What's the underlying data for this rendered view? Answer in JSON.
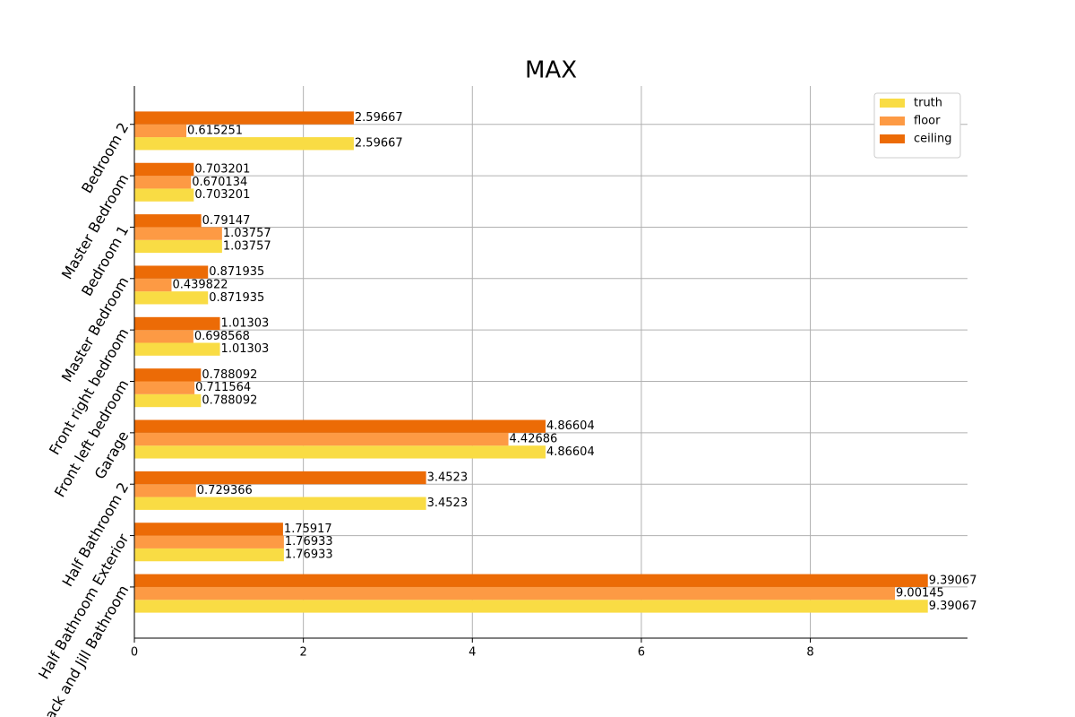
{
  "chart_data": {
    "type": "barh",
    "title": "MAX",
    "categories": [
      "Jack and Jill Bathroom",
      "Half Bathroom Exterior",
      "Half Bathroom 2",
      "Garage",
      "Front left bedroom",
      "Front right bedroom",
      "Master Bedroom",
      "Bedroom 1",
      "Master Bedroom",
      "Bedroom 2"
    ],
    "series": [
      {
        "name": "truth",
        "color": "#f9dc44",
        "values": [
          9.39067,
          1.76933,
          3.4523,
          4.86604,
          0.788092,
          1.01303,
          0.871935,
          1.03757,
          0.703201,
          2.59667
        ]
      },
      {
        "name": "floor",
        "color": "#fd9a44",
        "values": [
          9.00145,
          1.76933,
          0.729366,
          4.42686,
          0.711564,
          0.698568,
          0.439822,
          1.03757,
          0.670134,
          0.615251
        ]
      },
      {
        "name": "ceiling",
        "color": "#ec6b06",
        "values": [
          9.39067,
          1.75917,
          3.4523,
          4.86604,
          0.788092,
          1.01303,
          0.871935,
          0.79147,
          0.703201,
          2.59667
        ]
      }
    ],
    "xlim": [
      0,
      9.86
    ],
    "xticks": [
      0,
      2,
      4,
      6,
      8
    ],
    "grid": true,
    "legend": "upper right"
  }
}
